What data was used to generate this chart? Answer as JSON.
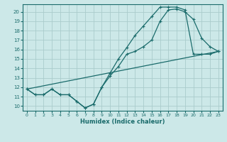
{
  "xlabel": "Humidex (Indice chaleur)",
  "xlim": [
    -0.5,
    23.5
  ],
  "ylim": [
    9.5,
    20.8
  ],
  "yticks": [
    10,
    11,
    12,
    13,
    14,
    15,
    16,
    17,
    18,
    19,
    20
  ],
  "xticks": [
    0,
    1,
    2,
    3,
    4,
    5,
    6,
    7,
    8,
    9,
    10,
    11,
    12,
    13,
    14,
    15,
    16,
    17,
    18,
    19,
    20,
    21,
    22,
    23
  ],
  "background_color": "#cce8e8",
  "grid_color": "#aacccc",
  "line_color": "#1a6b6b",
  "line1_x": [
    0,
    1,
    2,
    3,
    4,
    5,
    6,
    7,
    8,
    9,
    10,
    11,
    12,
    13,
    14,
    15,
    16,
    17,
    18,
    19,
    20,
    21,
    22,
    23
  ],
  "line1_y": [
    11.8,
    11.2,
    11.2,
    11.8,
    11.2,
    11.2,
    10.5,
    9.8,
    10.2,
    12.0,
    13.2,
    14.2,
    15.5,
    15.8,
    16.3,
    17.0,
    19.0,
    20.2,
    20.3,
    20.0,
    19.2,
    17.2,
    16.3,
    15.8
  ],
  "line2_x": [
    0,
    1,
    2,
    3,
    4,
    5,
    6,
    7,
    8,
    9,
    10,
    11,
    12,
    13,
    14,
    15,
    16,
    17,
    18,
    19,
    20,
    21,
    22,
    23
  ],
  "line2_y": [
    11.8,
    11.2,
    11.2,
    11.8,
    11.2,
    11.2,
    10.5,
    9.8,
    10.2,
    12.0,
    13.5,
    15.0,
    16.2,
    17.5,
    18.5,
    19.5,
    20.5,
    20.5,
    20.5,
    20.2,
    15.5,
    15.5,
    15.5,
    15.8
  ],
  "line3_x": [
    0,
    23
  ],
  "line3_y": [
    11.8,
    15.8
  ]
}
